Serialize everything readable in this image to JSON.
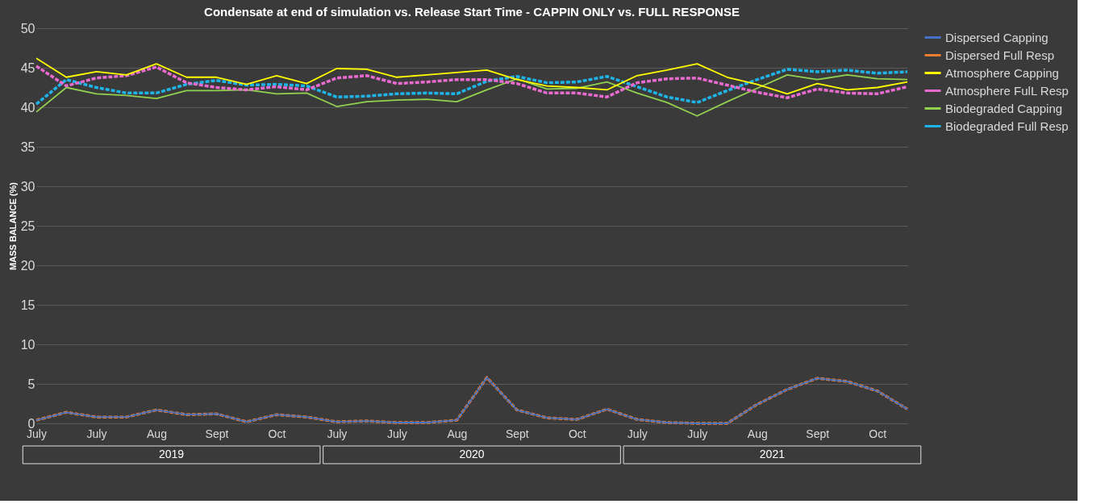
{
  "chart_data": {
    "type": "line",
    "title": "Condensate at end of simulation vs. Release Start Time - CAPPIN ONLY vs. FULL RESPONSE",
    "ylabel": "MASS BALANCE (%)",
    "categories": [
      "July",
      null,
      "July",
      null,
      "Aug",
      null,
      "Sept",
      null,
      "Oct",
      null,
      "July",
      null,
      "July",
      null,
      "Aug",
      null,
      "Sept",
      null,
      "Oct",
      null,
      "July",
      null,
      "July",
      null,
      "Aug",
      null,
      "Sept",
      null,
      "Oct",
      null
    ],
    "annotations": [
      "2019",
      "2020",
      "2021"
    ],
    "ylim": [
      0,
      50
    ],
    "yticks": [
      0,
      5,
      10,
      15,
      20,
      25,
      30,
      35,
      40,
      45,
      50
    ],
    "grid": "y",
    "legend": "right",
    "series": [
      {
        "name": "Dispersed Capping",
        "color": "#4472c4",
        "line_style": "solid",
        "values": [
          0.4,
          1.4,
          0.8,
          0.8,
          1.7,
          1.1,
          1.2,
          0.2,
          1.1,
          0.8,
          0.2,
          0.3,
          0.1,
          0.1,
          0.4,
          5.8,
          1.7,
          0.7,
          0.5,
          1.8,
          0.5,
          0.1,
          0.0,
          0.0,
          2.4,
          4.3,
          5.7,
          5.3,
          4.1,
          1.8
        ]
      },
      {
        "name": "Dispersed Full Resp",
        "color": "#ed7d31",
        "line_style": "dashed",
        "values": [
          0.4,
          1.4,
          0.8,
          0.8,
          1.7,
          1.1,
          1.2,
          0.2,
          1.1,
          0.8,
          0.2,
          0.3,
          0.1,
          0.1,
          0.4,
          5.8,
          1.7,
          0.7,
          0.5,
          1.8,
          0.5,
          0.1,
          0.0,
          0.0,
          2.4,
          4.3,
          5.7,
          5.3,
          4.1,
          1.8
        ]
      },
      {
        "name": "Atmosphere Capping",
        "color": "#ffff00",
        "line_style": "solid",
        "values": [
          46.2,
          43.8,
          44.5,
          44.1,
          45.5,
          43.8,
          43.8,
          42.9,
          44.0,
          43.0,
          44.9,
          44.8,
          43.8,
          44.1,
          44.4,
          44.7,
          43.5,
          42.7,
          42.5,
          42.2,
          44.0,
          44.7,
          45.5,
          43.8,
          42.9,
          41.7,
          43.0,
          42.2,
          42.5,
          43.2
        ]
      },
      {
        "name": "Atmosphere FulL Resp",
        "color": "#e96bd0",
        "line_style": "dashed",
        "values": [
          45.2,
          42.7,
          43.7,
          44.0,
          45.1,
          43.1,
          42.5,
          42.2,
          42.6,
          42.2,
          43.7,
          44.0,
          43.0,
          43.2,
          43.5,
          43.5,
          43.0,
          41.8,
          41.8,
          41.3,
          43.1,
          43.6,
          43.7,
          42.8,
          41.9,
          41.2,
          42.3,
          41.8,
          41.7,
          42.6
        ]
      },
      {
        "name": "Biodegraded Capping",
        "color": "#92d050",
        "line_style": "solid",
        "values": [
          39.4,
          42.5,
          41.7,
          41.5,
          41.1,
          42.1,
          42.1,
          42.2,
          41.7,
          41.8,
          40.1,
          40.7,
          40.9,
          41.0,
          40.7,
          42.2,
          43.6,
          42.3,
          42.4,
          43.2,
          41.8,
          40.6,
          38.9,
          40.7,
          42.4,
          44.1,
          43.5,
          44.1,
          43.6,
          43.5
        ]
      },
      {
        "name": "Biodegraded Full Resp",
        "color": "#1fb4e8",
        "line_style": "dashed",
        "values": [
          40.4,
          43.5,
          42.5,
          41.8,
          41.8,
          42.9,
          43.4,
          42.8,
          42.9,
          42.7,
          41.3,
          41.4,
          41.7,
          41.8,
          41.7,
          43.3,
          43.9,
          43.1,
          43.2,
          43.9,
          42.6,
          41.3,
          40.6,
          42.1,
          43.5,
          44.8,
          44.5,
          44.7,
          44.3,
          44.5
        ]
      }
    ]
  }
}
